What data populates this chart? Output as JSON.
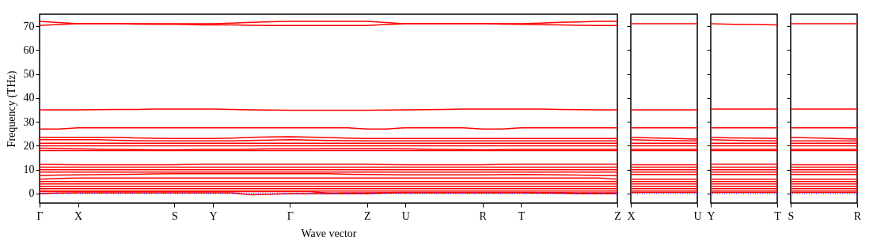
{
  "chart_data": [
    {
      "type": "line",
      "ylabel": "Frequency (THz)",
      "xlabel": "Wave vector",
      "categories": [
        "Γ",
        null,
        "X",
        null,
        null,
        null,
        null,
        "S",
        null,
        "Y",
        null,
        null,
        null,
        "Γ",
        null,
        null,
        null,
        "Z",
        null,
        "U",
        null,
        null,
        null,
        "R",
        null,
        "T",
        null,
        null,
        null,
        null,
        "Z"
      ],
      "ylim": [
        -4,
        75
      ],
      "yticks": [
        0,
        10,
        20,
        30,
        40,
        50,
        60,
        70
      ],
      "marker": "none",
      "line_style": "solid",
      "ref_lines": [
        {
          "axis": "y",
          "value": 0,
          "color": "#0000ff",
          "line_style": "dotted"
        }
      ],
      "series": [
        {
          "color": "#ff0000",
          "values": [
            72,
            71.5,
            71,
            71,
            71,
            70.9,
            70.8,
            70.8,
            70.6,
            70.5,
            70.5,
            70.4,
            70.3,
            70.3,
            70.3,
            70.3,
            70.3,
            70.3,
            70.7,
            71,
            71,
            71,
            71,
            71,
            70.9,
            70.8,
            70.6,
            70.5,
            70.4,
            70.3,
            70.3
          ]
        },
        {
          "color": "#ff0000",
          "values": [
            70.3,
            70.7,
            71,
            71,
            71,
            71,
            71,
            71,
            71,
            71,
            71.3,
            71.6,
            71.9,
            72,
            72,
            72,
            72,
            72,
            71.5,
            71,
            71,
            71,
            71,
            71,
            71,
            71,
            71.3,
            71.6,
            71.8,
            72,
            72
          ]
        },
        {
          "color": "#ff0000",
          "values": [
            35,
            35,
            35,
            35.1,
            35.2,
            35.2,
            35.3,
            35.3,
            35.3,
            35.3,
            35.2,
            35,
            34.9,
            34.8,
            34.8,
            34.8,
            34.8,
            34.8,
            34.9,
            35,
            35.1,
            35.2,
            35.3,
            35.3,
            35.3,
            35.3,
            35.3,
            35.2,
            35.1,
            35,
            35
          ]
        },
        {
          "color": "#ff0000",
          "values": [
            27,
            27,
            27.5,
            27.5,
            27.5,
            27.5,
            27.5,
            27.5,
            27.5,
            27.5,
            27.5,
            27.5,
            27.5,
            27.5,
            27.5,
            27.5,
            27.5,
            27,
            27,
            27.5,
            27.5,
            27.5,
            27.5,
            27,
            27,
            27.5,
            27.5,
            27.5,
            27.5,
            27.5,
            27.5
          ]
        },
        {
          "color": "#ff0000",
          "values": [
            23.5,
            23.5,
            23.5,
            23.5,
            23.5,
            23.3,
            23.1,
            23,
            23,
            23,
            23.2,
            23.5,
            23.7,
            23.8,
            23.6,
            23.4,
            23.2,
            23,
            23,
            23,
            23,
            23,
            23,
            23,
            23,
            23,
            23,
            23,
            23,
            23,
            23
          ]
        },
        {
          "color": "#ff0000",
          "values": [
            22.5,
            22.5,
            22.5,
            22.5,
            22.3,
            22.1,
            22,
            22,
            22,
            22,
            22,
            22.2,
            22.4,
            22.5,
            22.4,
            22.2,
            22.1,
            22,
            22,
            22,
            22,
            22,
            22,
            22,
            22,
            22,
            22,
            22,
            22,
            22,
            22
          ]
        },
        {
          "color": "#ff0000",
          "values": [
            21,
            21,
            21,
            21,
            21,
            21,
            21,
            21,
            21,
            21,
            21,
            21,
            21,
            21,
            21,
            21,
            21,
            21,
            21,
            21,
            21,
            21,
            21,
            21,
            21,
            21,
            21,
            21,
            21,
            21,
            21
          ]
        },
        {
          "color": "#ff0000",
          "values": [
            20,
            20,
            20,
            20,
            20,
            20,
            20,
            20,
            20,
            20,
            20,
            20,
            20,
            20,
            20,
            20,
            20,
            20,
            20,
            20,
            20,
            20,
            20,
            20,
            20,
            20,
            20,
            20,
            20,
            20,
            20
          ]
        },
        {
          "color": "#ff0000",
          "values": [
            19,
            18.9,
            18.7,
            18.6,
            18.5,
            18.4,
            18.3,
            18.3,
            18.4,
            18.5,
            18.5,
            18.6,
            18.7,
            18.7,
            18.7,
            18.8,
            18.8,
            18.8,
            18.8,
            18.7,
            18.6,
            18.5,
            18.4,
            18.3,
            18.4,
            18.5,
            18.5,
            18.5,
            18.5,
            18.5,
            18.5
          ]
        },
        {
          "color": "#ff0000",
          "values": [
            18,
            18,
            18,
            18,
            18,
            18,
            18,
            18,
            18,
            18,
            18,
            18,
            18,
            18,
            18,
            18,
            18,
            18,
            18,
            18,
            18,
            18,
            18,
            18,
            18,
            18,
            18,
            18,
            18,
            18,
            18
          ]
        },
        {
          "color": "#ff0000",
          "values": [
            12.2,
            12.1,
            12,
            12,
            12,
            12,
            12,
            12,
            12.2,
            12.3,
            12.3,
            12.3,
            12.3,
            12.3,
            12.3,
            12.3,
            12.3,
            12.3,
            12.1,
            12,
            12,
            12,
            12,
            12,
            12.2,
            12.3,
            12.3,
            12.3,
            12.3,
            12.3,
            12.3
          ]
        },
        {
          "color": "#ff0000",
          "values": [
            11,
            11,
            11,
            11,
            11,
            11,
            11,
            11,
            11,
            11,
            11,
            11,
            11,
            11,
            11,
            11,
            11,
            11,
            11,
            11,
            11,
            11,
            11,
            11,
            11,
            11,
            11,
            11,
            11,
            11,
            11
          ]
        },
        {
          "color": "#ff0000",
          "values": [
            10,
            10,
            10,
            10,
            10,
            10,
            10,
            10,
            10,
            10,
            10,
            10,
            10,
            10,
            10,
            10,
            10,
            10,
            10,
            10,
            10,
            10,
            10,
            10,
            10,
            10,
            10,
            10,
            10,
            10,
            10
          ]
        },
        {
          "color": "#ff0000",
          "values": [
            9,
            9,
            9,
            9,
            9,
            9,
            9,
            9,
            9,
            9,
            9,
            9,
            9,
            9,
            9,
            9,
            9,
            9,
            9,
            9,
            9,
            9,
            9,
            9,
            9,
            9,
            9,
            9,
            9,
            9,
            9
          ]
        },
        {
          "color": "#ff0000",
          "values": [
            7.5,
            7.7,
            7.8,
            7.9,
            8,
            8.1,
            8.2,
            8.3,
            8.3,
            8.3,
            8.3,
            8.3,
            8.3,
            8.3,
            8.3,
            8.3,
            8.1,
            8,
            7.9,
            7.8,
            7.8,
            7.8,
            7.8,
            7.8,
            7.9,
            8,
            7.9,
            7.8,
            7.7,
            7.6,
            7.5
          ]
        },
        {
          "color": "#ff0000",
          "values": [
            6,
            6.3,
            6.5,
            6.5,
            6.5,
            6.5,
            6.5,
            6.5,
            6.5,
            6.5,
            6.5,
            6.5,
            6.5,
            6.5,
            6.5,
            6.5,
            6.5,
            6.5,
            6.5,
            6.5,
            6.5,
            6.5,
            6.5,
            6.5,
            6.5,
            6.5,
            6.5,
            6.5,
            6.5,
            6.5,
            6
          ]
        },
        {
          "color": "#ff0000",
          "values": [
            5,
            5,
            5,
            5,
            5,
            5,
            5,
            5,
            5,
            5,
            5,
            5,
            5,
            5,
            5,
            5,
            5,
            5,
            5,
            5,
            5,
            5,
            5,
            5,
            5,
            5,
            5,
            5,
            5,
            5,
            5
          ]
        },
        {
          "color": "#ff0000",
          "values": [
            4,
            4,
            4,
            4,
            4,
            4,
            4,
            4,
            4,
            4,
            4,
            4,
            4,
            4,
            4,
            4,
            4,
            4,
            4,
            4,
            4,
            4,
            4,
            4,
            4,
            4,
            4,
            4,
            4,
            4,
            4
          ]
        },
        {
          "color": "#ff0000",
          "values": [
            3,
            3,
            3,
            3,
            3,
            3,
            3,
            3,
            3,
            3,
            3,
            3,
            3,
            3,
            3,
            3,
            3,
            3,
            3,
            3,
            3,
            3,
            3,
            3,
            3,
            3,
            3,
            3,
            3,
            3,
            3
          ]
        },
        {
          "color": "#ff0000",
          "values": [
            2,
            2,
            2,
            2,
            2,
            2,
            2,
            2,
            2,
            2,
            2,
            2,
            2,
            2,
            2,
            2,
            2,
            2,
            2,
            2,
            2,
            2,
            2,
            2,
            2,
            2,
            2,
            2,
            2,
            2,
            2
          ]
        },
        {
          "color": "#ff0000",
          "values": [
            1,
            1,
            1,
            1,
            1,
            1,
            1,
            1,
            1,
            1,
            1,
            1,
            1,
            1,
            1,
            1,
            1,
            1,
            1,
            1,
            1,
            1,
            1,
            1,
            1,
            1,
            1,
            1,
            1,
            1,
            1
          ]
        },
        {
          "color": "#ff0000",
          "values": [
            0.8,
            0.8,
            0.8,
            0.8,
            0.8,
            0.8,
            0.8,
            0.8,
            0.8,
            0.8,
            0.8,
            0.8,
            0.8,
            0.8,
            0.8,
            0.2,
            0.3,
            0.3,
            0.4,
            0.5,
            0.5,
            0.5,
            0.5,
            0.5,
            0.5,
            0.5,
            0.4,
            0.4,
            0.3,
            0.3,
            0.3
          ]
        },
        {
          "color": "#ff0000",
          "values": [
            0,
            0.2,
            0.3,
            0.3,
            0.3,
            0.3,
            0.3,
            0.3,
            0.3,
            0.3,
            0.3,
            -0.5,
            -0.3,
            0,
            0,
            0,
            0,
            0,
            0.2,
            0.3,
            0.3,
            0.3,
            0.3,
            0.3,
            0.3,
            0.3,
            0.2,
            0.1,
            0,
            0,
            0
          ]
        }
      ]
    },
    {
      "type": "line",
      "categories": [
        "X",
        null,
        null,
        "U"
      ],
      "ylim": [
        -4,
        75
      ],
      "yticks": [
        {
          "value": 0,
          "label": null
        },
        {
          "value": 10,
          "label": null
        },
        {
          "value": 20,
          "label": null
        },
        {
          "value": 30,
          "label": null
        },
        {
          "value": 40,
          "label": null
        },
        {
          "value": 50,
          "label": null
        },
        {
          "value": 60,
          "label": null
        },
        {
          "value": 70,
          "label": null
        }
      ],
      "tick_labels": "x",
      "marker": "none",
      "line_style": "solid",
      "ref_lines": [
        {
          "axis": "y",
          "value": 0,
          "color": "#0000ff",
          "line_style": "dotted"
        }
      ],
      "series": [
        {
          "color": "#ff0000",
          "values": [
            71,
            71,
            71,
            71
          ]
        },
        {
          "color": "#ff0000",
          "values": [
            35,
            35,
            35,
            35
          ]
        },
        {
          "color": "#ff0000",
          "values": [
            27.5,
            27.5,
            27.5,
            27.5
          ]
        },
        {
          "color": "#ff0000",
          "values": [
            23.5,
            23.3,
            23,
            22.8
          ]
        },
        {
          "color": "#ff0000",
          "values": [
            22.5,
            22.3,
            22.1,
            22
          ]
        },
        {
          "color": "#ff0000",
          "values": [
            21,
            21,
            21,
            21
          ]
        },
        {
          "color": "#ff0000",
          "values": [
            20,
            20,
            20,
            20
          ]
        },
        {
          "color": "#ff0000",
          "values": [
            18.5,
            18.5,
            18.5,
            18.5
          ]
        },
        {
          "color": "#ff0000",
          "values": [
            18,
            18,
            18,
            18
          ]
        },
        {
          "color": "#ff0000",
          "values": [
            12,
            12,
            12,
            12
          ]
        },
        {
          "color": "#ff0000",
          "values": [
            11,
            11,
            11,
            11
          ]
        },
        {
          "color": "#ff0000",
          "values": [
            10,
            10,
            10,
            10
          ]
        },
        {
          "color": "#ff0000",
          "values": [
            9,
            9,
            9,
            9
          ]
        },
        {
          "color": "#ff0000",
          "values": [
            8,
            8,
            8,
            8
          ]
        },
        {
          "color": "#ff0000",
          "values": [
            6,
            6,
            6,
            6
          ]
        },
        {
          "color": "#ff0000",
          "values": [
            5,
            5,
            5,
            5
          ]
        },
        {
          "color": "#ff0000",
          "values": [
            4,
            4,
            4,
            4
          ]
        },
        {
          "color": "#ff0000",
          "values": [
            3,
            3,
            3,
            3
          ]
        },
        {
          "color": "#ff0000",
          "values": [
            2,
            2,
            2,
            2
          ]
        },
        {
          "color": "#ff0000",
          "values": [
            1,
            1,
            1,
            1
          ]
        },
        {
          "color": "#ff0000",
          "values": [
            0.5,
            0.5,
            0.5,
            0.5
          ]
        }
      ]
    },
    {
      "type": "line",
      "categories": [
        "Y",
        null,
        null,
        "T"
      ],
      "ylim": [
        -4,
        75
      ],
      "yticks": [
        {
          "value": 0,
          "label": null
        },
        {
          "value": 10,
          "label": null
        },
        {
          "value": 20,
          "label": null
        },
        {
          "value": 30,
          "label": null
        },
        {
          "value": 40,
          "label": null
        },
        {
          "value": 50,
          "label": null
        },
        {
          "value": 60,
          "label": null
        },
        {
          "value": 70,
          "label": null
        }
      ],
      "tick_labels": "x",
      "marker": "none",
      "line_style": "solid",
      "ref_lines": [
        {
          "axis": "y",
          "value": 0,
          "color": "#0000ff",
          "line_style": "dotted"
        }
      ],
      "series": [
        {
          "color": "#ff0000",
          "values": [
            71,
            70.8,
            70.7,
            70.5
          ]
        },
        {
          "color": "#ff0000",
          "values": [
            35.3,
            35.3,
            35.3,
            35.3
          ]
        },
        {
          "color": "#ff0000",
          "values": [
            27.5,
            27.5,
            27.5,
            27.5
          ]
        },
        {
          "color": "#ff0000",
          "values": [
            23.5,
            23.3,
            23.2,
            23
          ]
        },
        {
          "color": "#ff0000",
          "values": [
            22.5,
            22.3,
            22.1,
            22
          ]
        },
        {
          "color": "#ff0000",
          "values": [
            21,
            21,
            21,
            21
          ]
        },
        {
          "color": "#ff0000",
          "values": [
            20,
            20,
            20,
            20
          ]
        },
        {
          "color": "#ff0000",
          "values": [
            18.5,
            18.5,
            18.5,
            18.5
          ]
        },
        {
          "color": "#ff0000",
          "values": [
            18,
            18,
            18,
            18
          ]
        },
        {
          "color": "#ff0000",
          "values": [
            12.3,
            12.3,
            12.3,
            12.3
          ]
        },
        {
          "color": "#ff0000",
          "values": [
            11,
            11,
            11,
            11
          ]
        },
        {
          "color": "#ff0000",
          "values": [
            10,
            10,
            10,
            10
          ]
        },
        {
          "color": "#ff0000",
          "values": [
            9,
            9,
            9,
            9
          ]
        },
        {
          "color": "#ff0000",
          "values": [
            8,
            8,
            8,
            8
          ]
        },
        {
          "color": "#ff0000",
          "values": [
            6,
            6,
            6,
            6
          ]
        },
        {
          "color": "#ff0000",
          "values": [
            5,
            5,
            5,
            5
          ]
        },
        {
          "color": "#ff0000",
          "values": [
            4,
            4,
            4,
            4
          ]
        },
        {
          "color": "#ff0000",
          "values": [
            3,
            3,
            3,
            3
          ]
        },
        {
          "color": "#ff0000",
          "values": [
            2,
            2,
            2,
            2
          ]
        },
        {
          "color": "#ff0000",
          "values": [
            1,
            1,
            1,
            1
          ]
        },
        {
          "color": "#ff0000",
          "values": [
            0.5,
            0.5,
            0.5,
            0.5
          ]
        }
      ]
    },
    {
      "type": "line",
      "categories": [
        "S",
        null,
        null,
        "R"
      ],
      "ylim": [
        -4,
        75
      ],
      "yticks": [
        {
          "value": 0,
          "label": null
        },
        {
          "value": 10,
          "label": null
        },
        {
          "value": 20,
          "label": null
        },
        {
          "value": 30,
          "label": null
        },
        {
          "value": 40,
          "label": null
        },
        {
          "value": 50,
          "label": null
        },
        {
          "value": 60,
          "label": null
        },
        {
          "value": 70,
          "label": null
        }
      ],
      "tick_labels": "x",
      "marker": "none",
      "line_style": "solid",
      "ref_lines": [
        {
          "axis": "y",
          "value": 0,
          "color": "#0000ff",
          "line_style": "dotted"
        }
      ],
      "series": [
        {
          "color": "#ff0000",
          "values": [
            71,
            71,
            71,
            71
          ]
        },
        {
          "color": "#ff0000",
          "values": [
            35.3,
            35.3,
            35.3,
            35.3
          ]
        },
        {
          "color": "#ff0000",
          "values": [
            27.5,
            27.5,
            27.5,
            27.5
          ]
        },
        {
          "color": "#ff0000",
          "values": [
            23.5,
            23.3,
            23,
            22.8
          ]
        },
        {
          "color": "#ff0000",
          "values": [
            22,
            22,
            22,
            22
          ]
        },
        {
          "color": "#ff0000",
          "values": [
            21,
            21,
            21,
            21
          ]
        },
        {
          "color": "#ff0000",
          "values": [
            20,
            20,
            20,
            20
          ]
        },
        {
          "color": "#ff0000",
          "values": [
            18.5,
            18.5,
            18.5,
            18.5
          ]
        },
        {
          "color": "#ff0000",
          "values": [
            18,
            18,
            18,
            18
          ]
        },
        {
          "color": "#ff0000",
          "values": [
            12,
            12,
            12,
            12
          ]
        },
        {
          "color": "#ff0000",
          "values": [
            11,
            11,
            11,
            11
          ]
        },
        {
          "color": "#ff0000",
          "values": [
            10,
            10,
            10,
            10
          ]
        },
        {
          "color": "#ff0000",
          "values": [
            9,
            9,
            9,
            9
          ]
        },
        {
          "color": "#ff0000",
          "values": [
            8,
            8,
            8,
            8
          ]
        },
        {
          "color": "#ff0000",
          "values": [
            6,
            6,
            6,
            6
          ]
        },
        {
          "color": "#ff0000",
          "values": [
            5,
            5,
            5,
            5
          ]
        },
        {
          "color": "#ff0000",
          "values": [
            4,
            4,
            4,
            4
          ]
        },
        {
          "color": "#ff0000",
          "values": [
            3,
            3,
            3,
            3
          ]
        },
        {
          "color": "#ff0000",
          "values": [
            2,
            2,
            2,
            2
          ]
        },
        {
          "color": "#ff0000",
          "values": [
            1,
            1,
            1,
            1
          ]
        },
        {
          "color": "#ff0000",
          "values": [
            0.5,
            0.5,
            0.5,
            0.5
          ]
        }
      ]
    }
  ]
}
